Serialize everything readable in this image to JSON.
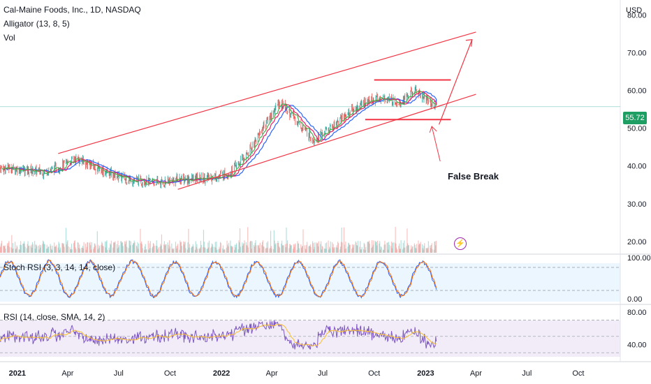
{
  "header": {
    "symbol": "Cal-Maine Foods, Inc., 1D, NASDAQ",
    "indicator1": "Alligator (13, 8, 5)",
    "indicator2": "Vol"
  },
  "axis": {
    "currency": "USD"
  },
  "last_price": "55.72",
  "annotation": {
    "text": "False Break"
  },
  "panes": {
    "stoch": {
      "label": "Stoch RSI (3, 3, 14, 14, close)",
      "ticks": [
        "100.00",
        "0.00"
      ]
    },
    "rsi": {
      "label": "RSI (14, close, SMA, 14, 2)",
      "ticks": [
        "80.00",
        "40.00"
      ]
    }
  },
  "colors": {
    "up_candle": "#26a69a",
    "down_candle": "#ef5350",
    "alligator_jaw": "#2962ff",
    "alligator_teeth": "#e91e63",
    "alligator_lips": "#4caf50",
    "trendline": "#f23645",
    "stoch_k": "#2962ff",
    "stoch_d": "#ff6d00",
    "rsi_line": "#7e57c2",
    "rsi_ma": "#fbc02d",
    "price_badge": "#1e9e63"
  },
  "chart_data": {
    "type": "line",
    "title": "Cal-Maine Foods, Inc., 1D, NASDAQ",
    "x_ticks": [
      "2021",
      "Apr",
      "Jul",
      "Oct",
      "2022",
      "Apr",
      "Jul",
      "Oct",
      "2023",
      "Apr",
      "Jul",
      "Oct"
    ],
    "y_ticks": [
      80,
      70,
      60,
      50,
      40,
      30,
      20
    ],
    "ylim": [
      17,
      84
    ],
    "x": [
      "2020-12",
      "2021-01",
      "2021-02",
      "2021-03",
      "2021-04",
      "2021-05",
      "2021-06",
      "2021-07",
      "2021-08",
      "2021-09",
      "2021-10",
      "2021-11",
      "2021-12",
      "2022-01",
      "2022-02",
      "2022-03",
      "2022-04",
      "2022-05",
      "2022-06",
      "2022-07",
      "2022-08",
      "2022-09",
      "2022-10",
      "2022-11",
      "2022-12",
      "2023-01"
    ],
    "series": [
      {
        "values": [
          39.5,
          39,
          38.5,
          39.5,
          42,
          40,
          38,
          36.5,
          36,
          35.5,
          36.5,
          36.5,
          37,
          38,
          43,
          50,
          57,
          52,
          47,
          50,
          54,
          57,
          58,
          57,
          60,
          56
        ]
      }
    ],
    "trendlines": [
      {
        "name": "upper channel",
        "from": [
          "2021-03-15",
          43.3
        ],
        "to": [
          "2023-04-01",
          75.5
        ]
      },
      {
        "name": "lower channel",
        "from": [
          "2021-10-15",
          33.8
        ],
        "to": [
          "2023-04-01",
          59
        ]
      },
      {
        "name": "range top",
        "from": [
          "2022-10-01",
          62.8
        ],
        "to": [
          "2023-02-15",
          62.8
        ]
      },
      {
        "name": "range bottom",
        "from": [
          "2022-09-15",
          52.3
        ],
        "to": [
          "2023-02-15",
          52.3
        ]
      }
    ],
    "stoch_rsi": {
      "ylim": [
        0,
        100
      ],
      "levels": [
        80,
        20
      ]
    },
    "rsi": {
      "levels": [
        70,
        50,
        30
      ],
      "ticks": [
        80,
        40
      ]
    }
  }
}
